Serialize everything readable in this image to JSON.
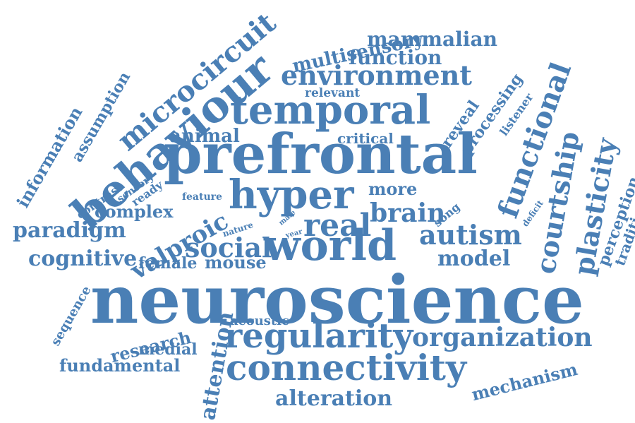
{
  "color": "#4a7fb5",
  "words": [
    "neuroscience",
    "prefrontal",
    "behaviour",
    "world",
    "temporal",
    "hyper",
    "connectivity",
    "regularity",
    "microcircuit",
    "environment",
    "functional",
    "function",
    "organization",
    "plasticity",
    "courtship",
    "autism",
    "real",
    "social",
    "valproic",
    "brain",
    "mammalian",
    "multisensory",
    "information",
    "assumption",
    "paradigm",
    "cognitive",
    "complex",
    "animal",
    "critical",
    "relevant",
    "more",
    "model",
    "mouse",
    "female",
    "research",
    "medial",
    "fundamental",
    "attention",
    "alteration",
    "mechanism",
    "acoustic",
    "reveal",
    "processing",
    "listener",
    "perception",
    "traditional",
    "sequence",
    "contrast",
    "sensory",
    "ready",
    "feature",
    "nature",
    "male",
    "year",
    "song",
    "deficit"
  ]
}
